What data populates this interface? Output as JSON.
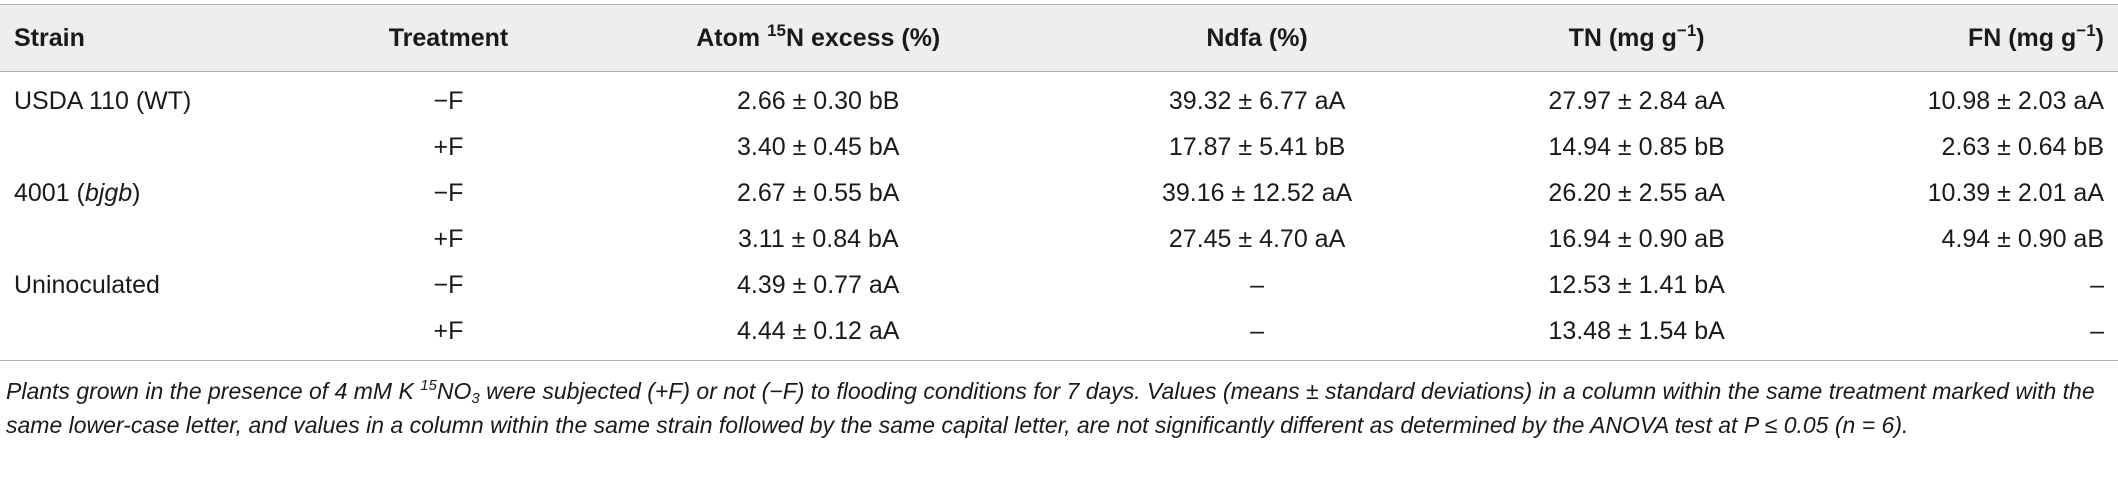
{
  "headers": {
    "strain": "Strain",
    "treatment": "Treatment",
    "atom_pre": "Atom ",
    "atom_sup": "15",
    "atom_post": "N excess (%)",
    "ndfa": "Ndfa (%)",
    "tn_pre": "TN (mg g",
    "tn_sup": "−1",
    "tn_post": ")",
    "fn_pre": "FN (mg g",
    "fn_sup": "−1",
    "fn_post": ")"
  },
  "rows": [
    {
      "strain": "USDA 110 (WT)",
      "strain_italic": "",
      "strain_post": "",
      "treatment": "−F",
      "atom": "2.66 ± 0.30 bB",
      "ndfa": "39.32 ± 6.77 aA",
      "tn": "27.97 ± 2.84 aA",
      "fn": "10.98 ± 2.03 aA"
    },
    {
      "strain": "",
      "strain_italic": "",
      "strain_post": "",
      "treatment": "+F",
      "atom": "3.40 ± 0.45 bA",
      "ndfa": "17.87 ± 5.41 bB",
      "tn": "14.94 ± 0.85 bB",
      "fn": "2.63 ± 0.64 bB"
    },
    {
      "strain": "4001 (",
      "strain_italic": "bjgb",
      "strain_post": ")",
      "treatment": "−F",
      "atom": "2.67 ± 0.55 bA",
      "ndfa": "39.16 ± 12.52 aA",
      "tn": "26.20 ± 2.55 aA",
      "fn": "10.39 ± 2.01 aA"
    },
    {
      "strain": "",
      "strain_italic": "",
      "strain_post": "",
      "treatment": "+F",
      "atom": "3.11 ± 0.84 bA",
      "ndfa": "27.45 ± 4.70 aA",
      "tn": "16.94 ± 0.90 aB",
      "fn": "4.94 ± 0.90 aB"
    },
    {
      "strain": "Uninoculated",
      "strain_italic": "",
      "strain_post": "",
      "treatment": "−F",
      "atom": "4.39 ± 0.77 aA",
      "ndfa": "–",
      "tn": "12.53 ± 1.41 bA",
      "fn": "–"
    },
    {
      "strain": "",
      "strain_italic": "",
      "strain_post": "",
      "treatment": "+F",
      "atom": "4.44 ± 0.12 aA",
      "ndfa": "–",
      "tn": "13.48 ± 1.54 bA",
      "fn": "–"
    }
  ],
  "caption": {
    "part1": "Plants grown in the presence of 4 mM K ",
    "sup": "15",
    "part2": "NO",
    "sub": "3",
    "part3": " were subjected (+F) or not (−F) to flooding conditions for 7 days. Values (means ± standard deviations) in a column within the same treatment marked with the same lower-case letter, and values in a column within the same strain followed by the same capital letter, are not significantly different as determined by the ANOVA test at P ≤ 0.05 (n = 6)."
  }
}
